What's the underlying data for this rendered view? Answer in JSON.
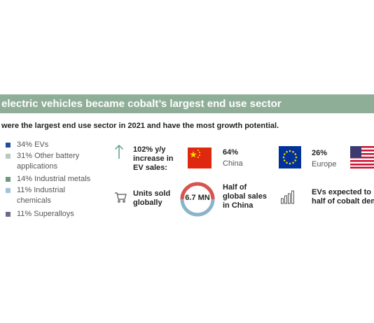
{
  "banner": {
    "title": "electric vehicles became cobalt’s largest end use sector"
  },
  "subhead": {
    "text": "were the largest end use sector in 2021 and have the most growth potential."
  },
  "legend": [
    {
      "label": "34% EVs",
      "color": "#1f4e9a"
    },
    {
      "label": "31% Other battery applications",
      "color": "#b8c9c0"
    },
    {
      "label": "14% Industrial metals",
      "color": "#6c9a80"
    },
    {
      "label": "11% Industrial chemicals",
      "color": "#9fc4d6"
    },
    {
      "label": "11% Superalloys",
      "color": "#6d6a8a"
    }
  ],
  "stats": {
    "increase": {
      "line1": "102% y/y",
      "line2": "increase in",
      "line3": "EV sales:",
      "icon": "arrow-up-icon"
    },
    "units": {
      "line1": "Units sold",
      "line2": "globally",
      "icon": "shopping-cart-icon"
    },
    "ring_value": "6.7 MN",
    "half_china": {
      "line1": "Half of",
      "line2": "global sales",
      "line3": "in China"
    },
    "expected": {
      "line1": "EVs expected to",
      "line2": "half of cobalt dem",
      "icon": "bar-chart-icon"
    }
  },
  "regions": [
    {
      "pct": "64%",
      "name": "China",
      "flag": "china-flag"
    },
    {
      "pct": "26%",
      "name": "Europe",
      "flag": "eu-flag"
    },
    {
      "pct": "",
      "name": "",
      "flag": "us-flag"
    }
  ],
  "colors": {
    "banner": "#8fae98",
    "ring_red": "#d9534f",
    "ring_blue": "#8ab4cc",
    "icon_teal": "#5f9e8c"
  }
}
